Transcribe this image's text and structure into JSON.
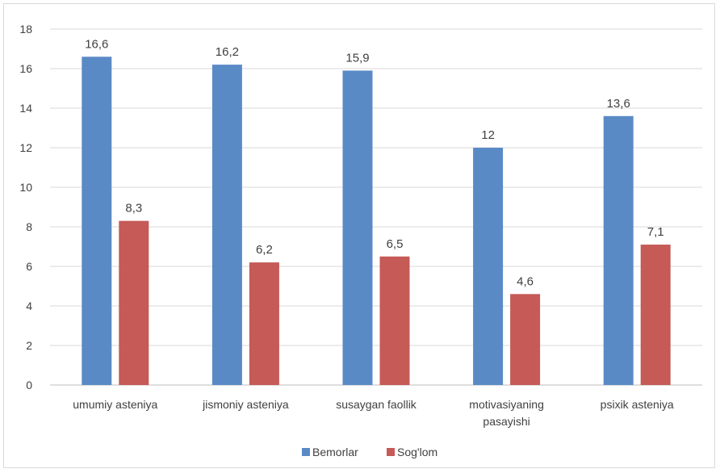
{
  "chart_data": {
    "type": "bar",
    "categories": [
      [
        "umumiy asteniya"
      ],
      [
        "jismoniy asteniya"
      ],
      [
        "susaygan faollik"
      ],
      [
        "motivasiyaning",
        "pasayishi"
      ],
      [
        "psixik asteniya"
      ]
    ],
    "series": [
      {
        "name": "Bemorlar",
        "color": "#5a8ac6",
        "values": [
          16.6,
          16.2,
          15.9,
          12,
          13.6
        ],
        "labels": [
          "16,6",
          "16,2",
          "15,9",
          "12",
          "13,6"
        ]
      },
      {
        "name": "Sog'lom",
        "color": "#c55a57",
        "values": [
          8.3,
          6.2,
          6.5,
          4.6,
          7.1
        ],
        "labels": [
          "8,3",
          "6,2",
          "6,5",
          "4,6",
          "7,1"
        ]
      }
    ],
    "ylim": [
      0,
      18
    ],
    "yticks": [
      0,
      2,
      4,
      6,
      8,
      10,
      12,
      14,
      16,
      18
    ],
    "grid": true,
    "legend_position": "bottom"
  }
}
